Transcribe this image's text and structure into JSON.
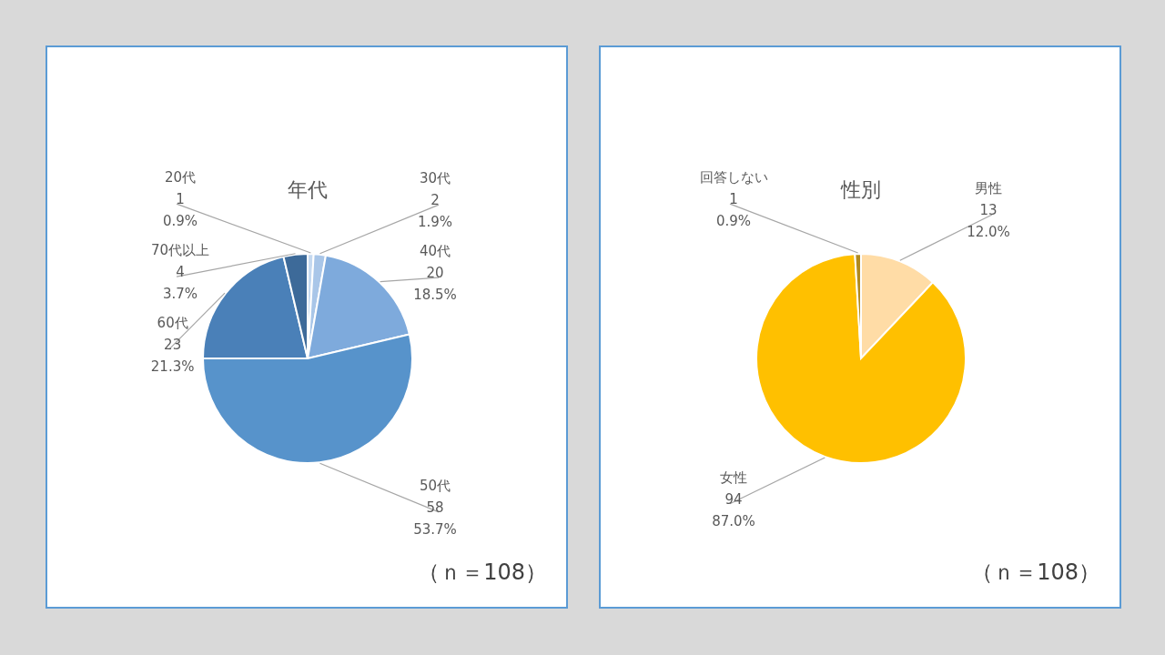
{
  "chart_data": [
    {
      "type": "pie",
      "title": "年代",
      "categories": [
        "20代",
        "30代",
        "40代",
        "50代",
        "60代",
        "70代以上"
      ],
      "values": [
        1,
        2,
        20,
        58,
        23,
        4
      ],
      "value_labels": [
        "1\n0.9%",
        "2\n1.9%",
        "20\n18.5%",
        "58\n53.7%",
        "23\n21.3%",
        "4\n3.7%"
      ],
      "colors": [
        "#c5d9f0",
        "#a9c6e8",
        "#7eaadc",
        "#5793cb",
        "#4a80b8",
        "#3d6a99"
      ],
      "annotations": [
        "（ｎ＝108）"
      ]
    },
    {
      "type": "pie",
      "title": "性別",
      "categories": [
        "男性",
        "女性",
        "回答しない"
      ],
      "values": [
        13,
        94,
        1
      ],
      "value_labels": [
        "13\n12.0%",
        "94\n87.0%",
        "1\n0.9%"
      ],
      "colors": [
        "#ffdca6",
        "#ffc000",
        "#b08a1e"
      ],
      "annotations": [
        "（ｎ＝108）"
      ]
    }
  ]
}
